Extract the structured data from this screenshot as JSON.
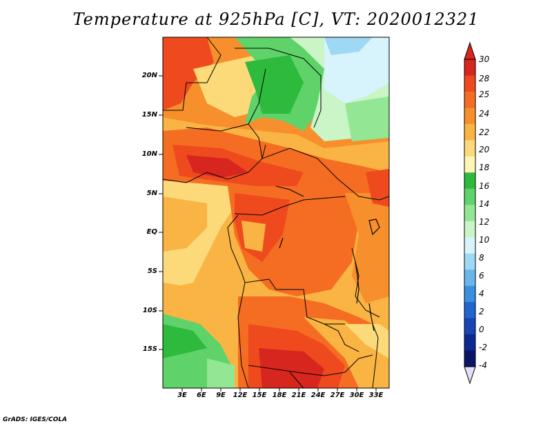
{
  "title": "Temperature at 925hPa [C], VT: 2020012321",
  "credit": "GrADS: IGES/COLA",
  "map": {
    "lat_labels": [
      "20N",
      "15N",
      "10N",
      "5N",
      "EQ",
      "5S",
      "10S",
      "15S"
    ],
    "lon_labels": [
      "3E",
      "6E",
      "9E",
      "12E",
      "15E",
      "18E",
      "21E",
      "24E",
      "27E",
      "30E",
      "33E"
    ]
  },
  "colorbar": {
    "labels": [
      "30",
      "28",
      "25",
      "24",
      "22",
      "20",
      "18",
      "16",
      "14",
      "12",
      "10",
      "8",
      "6",
      "4",
      "2",
      "0",
      "-2",
      "-4"
    ],
    "colors": [
      "#d7261e",
      "#ef4a1e",
      "#f46d22",
      "#f68f2c",
      "#f9b443",
      "#fcd979",
      "#fff5b4",
      "#2eba3c",
      "#5fd36a",
      "#93e694",
      "#c9f5c7",
      "#d7f3fb",
      "#9ed8f4",
      "#6ab6ec",
      "#3a8fe0",
      "#1f66cf",
      "#1a44b4",
      "#0d2891",
      "#0a1566"
    ],
    "top_arrow_color": "#d7261e",
    "bottom_arrow_color": "#e2e0f4"
  }
}
